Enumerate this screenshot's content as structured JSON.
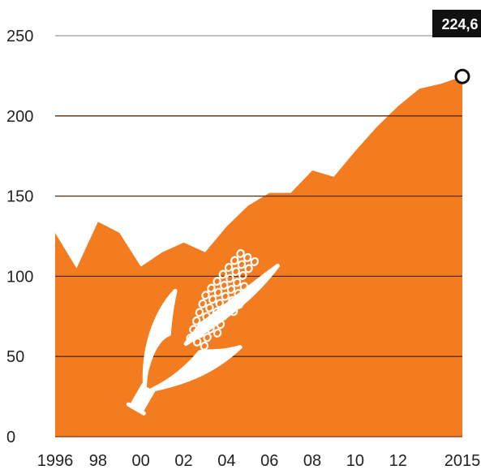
{
  "chart_data": {
    "type": "area",
    "title": "",
    "xlabel": "",
    "ylabel": "",
    "ylim": [
      0,
      250
    ],
    "grid": true,
    "fill_color": "#F47C20",
    "y_ticks": [
      0,
      50,
      100,
      150,
      200,
      250
    ],
    "y_tick_labels": [
      "0",
      "50",
      "100",
      "150",
      "200",
      "250"
    ],
    "x_ticks": [
      1996,
      1998,
      2000,
      2002,
      2004,
      2006,
      2008,
      2010,
      2012,
      2015
    ],
    "x_tick_labels": [
      "1996",
      "98",
      "00",
      "02",
      "04",
      "06",
      "08",
      "10",
      "12",
      "2015"
    ],
    "series": [
      {
        "x": [
          1996,
          1997,
          1998,
          1999,
          2000,
          2001,
          2002,
          2003,
          2004,
          2005,
          2006,
          2007,
          2008,
          2009,
          2010,
          2011,
          2012,
          2013,
          2014,
          2015
        ],
        "values": [
          127,
          105,
          134,
          127,
          106,
          115,
          121,
          115,
          131,
          144,
          152,
          152,
          166,
          162,
          178,
          193,
          206,
          217,
          220,
          224.6
        ]
      }
    ],
    "annotation": {
      "x": 2015,
      "y": 224.6,
      "label": "224,6",
      "color": "#111111"
    },
    "illustration": "corn-icon"
  }
}
